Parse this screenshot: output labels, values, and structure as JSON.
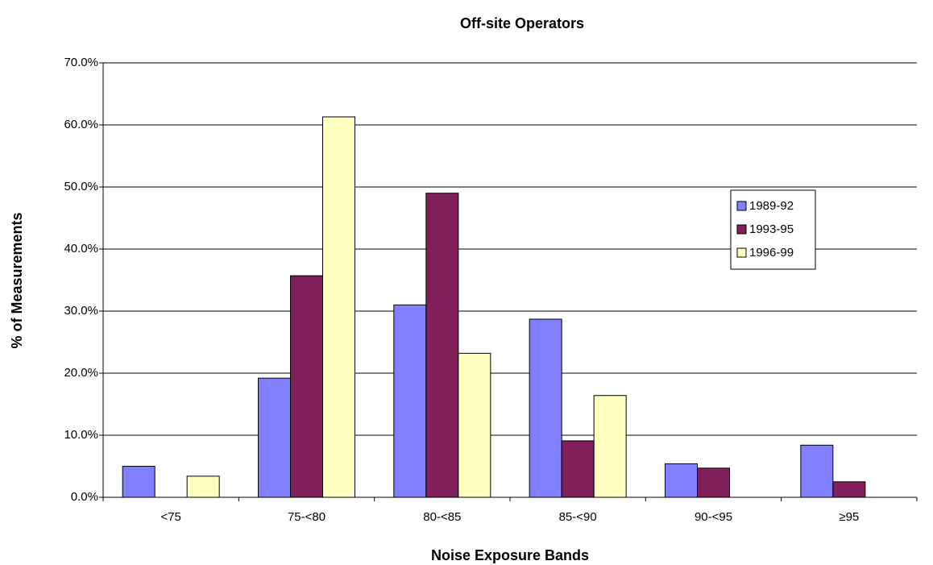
{
  "chart_data": {
    "type": "bar",
    "title": "Off-site Operators",
    "x_label": "Noise Exposure Bands",
    "y_label": "% of Measurements",
    "categories": [
      "<75",
      "75-<80",
      "80-<85",
      "85-<90",
      "90-<95",
      "≥95"
    ],
    "series": [
      {
        "name": "1989-92",
        "color": "#8080ff",
        "values": [
          5.0,
          19.2,
          31.0,
          28.7,
          5.4,
          8.4
        ]
      },
      {
        "name": "1993-95",
        "color": "#801f5a",
        "values": [
          0,
          35.7,
          49.0,
          9.1,
          4.7,
          2.5
        ]
      },
      {
        "name": "1996-99",
        "color": "#ffffc0",
        "values": [
          3.4,
          61.3,
          23.2,
          16.4,
          0,
          0
        ]
      }
    ],
    "ylim": [
      0,
      70
    ],
    "yticks": [
      {
        "value": 0,
        "label": "0.0%"
      },
      {
        "value": 10,
        "label": "10.0%"
      },
      {
        "value": 20,
        "label": "20.0%"
      },
      {
        "value": 30,
        "label": "30.0%"
      },
      {
        "value": 40,
        "label": "40.0%"
      },
      {
        "value": 50,
        "label": "50.0%"
      },
      {
        "value": 60,
        "label": "60.0%"
      },
      {
        "value": 70,
        "label": "70.0%"
      }
    ],
    "grid": true,
    "legend": "right"
  }
}
